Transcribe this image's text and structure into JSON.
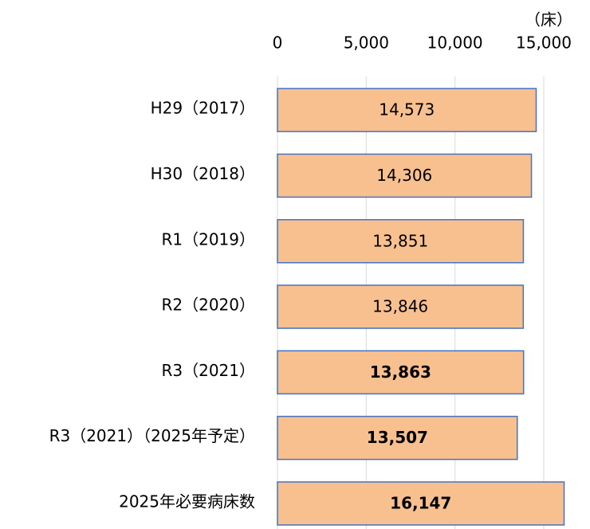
{
  "chart_data": {
    "type": "bar",
    "orientation": "horizontal",
    "unit_label": "（床）",
    "categories": [
      "H29（2017）",
      "H30（2018）",
      "R1（2019）",
      "R2（2020）",
      "R3（2021）",
      "R3（2021）（2025年予定）",
      "2025年必要病床数"
    ],
    "values": [
      14573,
      14306,
      13851,
      13846,
      13863,
      13507,
      16147
    ],
    "value_labels": [
      "14,573",
      "14,306",
      "13,851",
      "13,846",
      "13,863",
      "13,507",
      "16,147"
    ],
    "value_label_bold": [
      false,
      false,
      false,
      false,
      true,
      true,
      true
    ],
    "color": "#f9c08f",
    "edge_color": "#4472c4",
    "xlim": [
      0,
      17000
    ],
    "xticks": [
      0,
      {
        "value": 5000,
        "label": "5,000"
      },
      {
        "value": 10000,
        "label": "10,000"
      },
      {
        "value": 15000,
        "label": "15,000"
      }
    ],
    "grid": true
  }
}
